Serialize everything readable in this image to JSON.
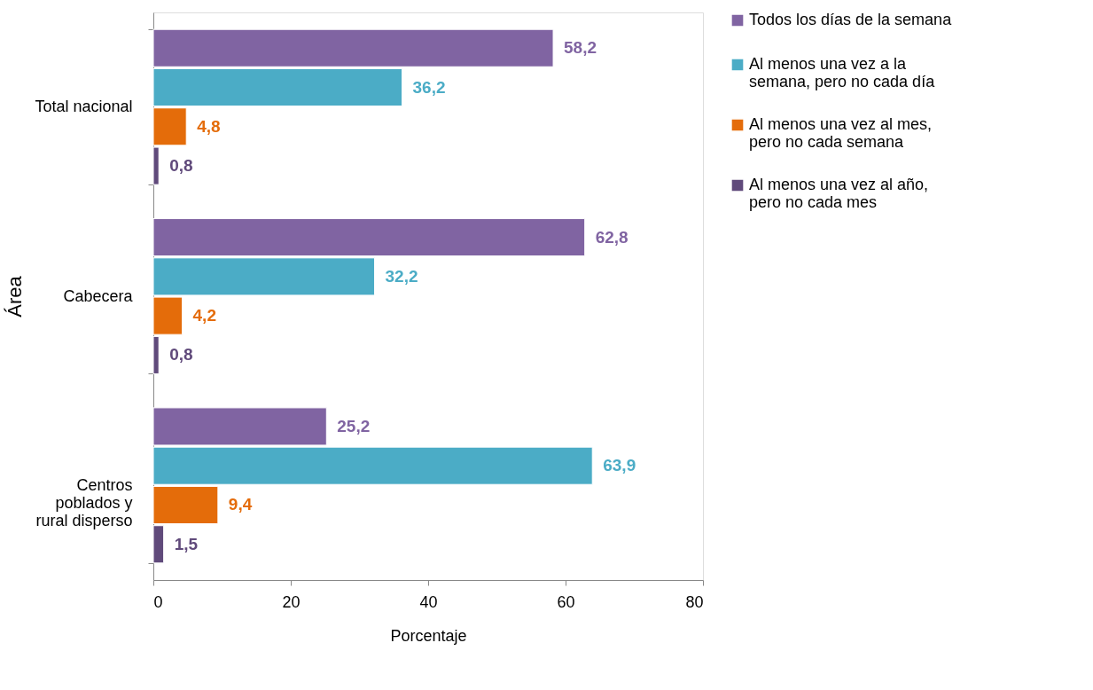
{
  "chart_data": {
    "type": "bar",
    "orientation": "horizontal",
    "xlabel": "Porcentaje",
    "ylabel": "Área",
    "categories": [
      "Total nacional",
      "Cabecera",
      "Centros poblados y rural disperso"
    ],
    "series": [
      {
        "name": "Todos los días de la semana",
        "color": "#8064a2",
        "values": [
          58.2,
          62.8,
          25.2
        ],
        "value_labels": [
          "58,2",
          "62,8",
          "25,2"
        ]
      },
      {
        "name": "Al menos una vez a la semana, pero no cada día",
        "color": "#4bacc6",
        "values": [
          36.2,
          32.2,
          63.9
        ],
        "value_labels": [
          "36,2",
          "32,2",
          "63,9"
        ]
      },
      {
        "name": "Al menos una vez al mes, pero no cada semana",
        "color": "#e46c0a",
        "values": [
          4.8,
          4.2,
          9.4
        ],
        "value_labels": [
          "4,8",
          "4,2",
          "9,4"
        ]
      },
      {
        "name": "Al menos una vez al año, pero no cada mes",
        "color": "#604a7b",
        "values": [
          0.8,
          0.8,
          1.5
        ],
        "value_labels": [
          "0,8",
          "0,8",
          "1,5"
        ]
      }
    ],
    "xlim": [
      0,
      80
    ],
    "xticks": [
      0,
      20,
      40,
      60,
      80
    ],
    "grid": false,
    "legend": "right"
  }
}
